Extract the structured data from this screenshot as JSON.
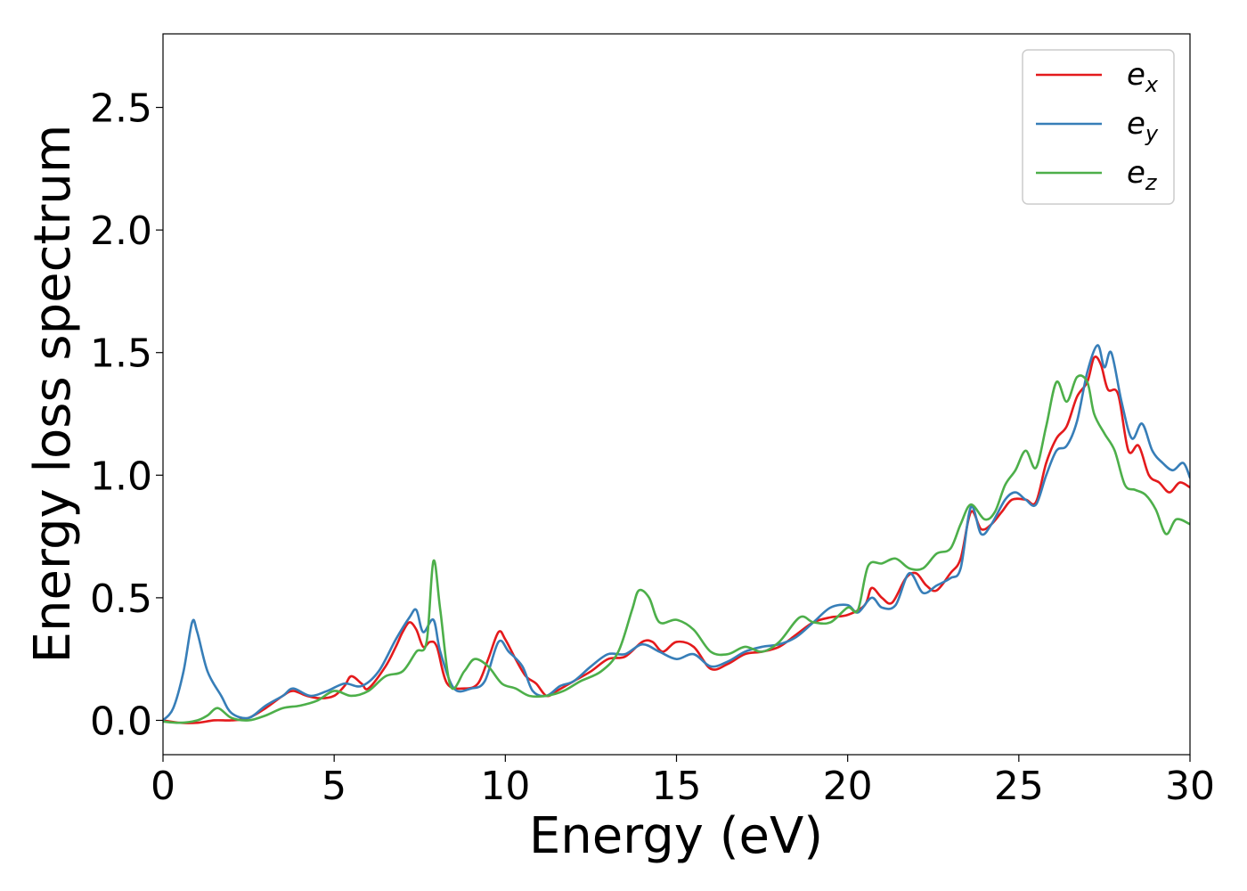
{
  "chart_data": {
    "type": "line",
    "xlabel": "Energy (eV)",
    "ylabel": "Energy loss spectrum",
    "xlim": [
      0,
      30
    ],
    "ylim": [
      -0.14,
      2.8
    ],
    "x_ticks": [
      "0",
      "5",
      "10",
      "15",
      "20",
      "25",
      "30"
    ],
    "y_ticks": [
      "0.0",
      "0.5",
      "1.0",
      "1.5",
      "2.0",
      "2.5"
    ],
    "grid": false,
    "legend_position": "top-right",
    "series": [
      {
        "name": "e_x",
        "label_base": "e",
        "label_sub": "x",
        "color": "#e41a1c",
        "points": [
          [
            0,
            0
          ],
          [
            0.5,
            -0.01
          ],
          [
            1,
            -0.01
          ],
          [
            1.5,
            0
          ],
          [
            2,
            0
          ],
          [
            2.5,
            0.01
          ],
          [
            3,
            0.05
          ],
          [
            3.5,
            0.1
          ],
          [
            3.8,
            0.12
          ],
          [
            4.2,
            0.1
          ],
          [
            4.6,
            0.09
          ],
          [
            5,
            0.1
          ],
          [
            5.3,
            0.14
          ],
          [
            5.5,
            0.18
          ],
          [
            5.8,
            0.15
          ],
          [
            6,
            0.13
          ],
          [
            6.5,
            0.22
          ],
          [
            6.8,
            0.3
          ],
          [
            7.0,
            0.36
          ],
          [
            7.2,
            0.4
          ],
          [
            7.4,
            0.37
          ],
          [
            7.6,
            0.3
          ],
          [
            7.8,
            0.32
          ],
          [
            8.0,
            0.3
          ],
          [
            8.3,
            0.15
          ],
          [
            8.8,
            0.13
          ],
          [
            9.2,
            0.15
          ],
          [
            9.5,
            0.25
          ],
          [
            9.8,
            0.36
          ],
          [
            10.0,
            0.33
          ],
          [
            10.3,
            0.25
          ],
          [
            10.6,
            0.18
          ],
          [
            10.9,
            0.15
          ],
          [
            11.2,
            0.1
          ],
          [
            11.5,
            0.12
          ],
          [
            12,
            0.16
          ],
          [
            12.5,
            0.2
          ],
          [
            13,
            0.25
          ],
          [
            13.5,
            0.26
          ],
          [
            14,
            0.32
          ],
          [
            14.3,
            0.32
          ],
          [
            14.6,
            0.28
          ],
          [
            15,
            0.32
          ],
          [
            15.5,
            0.3
          ],
          [
            16,
            0.21
          ],
          [
            16.5,
            0.23
          ],
          [
            17,
            0.27
          ],
          [
            17.5,
            0.28
          ],
          [
            18,
            0.3
          ],
          [
            18.5,
            0.35
          ],
          [
            19,
            0.4
          ],
          [
            19.5,
            0.42
          ],
          [
            20,
            0.43
          ],
          [
            20.5,
            0.47
          ],
          [
            20.7,
            0.54
          ],
          [
            21,
            0.5
          ],
          [
            21.3,
            0.48
          ],
          [
            21.7,
            0.58
          ],
          [
            22,
            0.6
          ],
          [
            22.3,
            0.55
          ],
          [
            22.6,
            0.53
          ],
          [
            23,
            0.6
          ],
          [
            23.3,
            0.66
          ],
          [
            23.6,
            0.85
          ],
          [
            23.9,
            0.78
          ],
          [
            24.2,
            0.8
          ],
          [
            24.5,
            0.85
          ],
          [
            24.8,
            0.9
          ],
          [
            25.2,
            0.9
          ],
          [
            25.5,
            0.89
          ],
          [
            25.8,
            1.05
          ],
          [
            26.1,
            1.15
          ],
          [
            26.4,
            1.2
          ],
          [
            26.7,
            1.32
          ],
          [
            27,
            1.38
          ],
          [
            27.2,
            1.48
          ],
          [
            27.4,
            1.45
          ],
          [
            27.6,
            1.35
          ],
          [
            27.9,
            1.33
          ],
          [
            28.2,
            1.1
          ],
          [
            28.5,
            1.12
          ],
          [
            28.8,
            1.0
          ],
          [
            29.1,
            0.97
          ],
          [
            29.4,
            0.93
          ],
          [
            29.7,
            0.97
          ],
          [
            30,
            0.95
          ]
        ]
      },
      {
        "name": "e_y",
        "label_base": "e",
        "label_sub": "y",
        "color": "#377eb8",
        "points": [
          [
            0,
            0
          ],
          [
            0.3,
            0.05
          ],
          [
            0.6,
            0.2
          ],
          [
            0.85,
            0.4
          ],
          [
            1.0,
            0.36
          ],
          [
            1.3,
            0.2
          ],
          [
            1.7,
            0.1
          ],
          [
            2.0,
            0.03
          ],
          [
            2.5,
            0.01
          ],
          [
            3,
            0.06
          ],
          [
            3.5,
            0.1
          ],
          [
            3.8,
            0.13
          ],
          [
            4.3,
            0.1
          ],
          [
            4.8,
            0.12
          ],
          [
            5.3,
            0.15
          ],
          [
            5.8,
            0.14
          ],
          [
            6.3,
            0.2
          ],
          [
            6.8,
            0.33
          ],
          [
            7.2,
            0.42
          ],
          [
            7.4,
            0.45
          ],
          [
            7.6,
            0.36
          ],
          [
            7.9,
            0.41
          ],
          [
            8.1,
            0.28
          ],
          [
            8.5,
            0.13
          ],
          [
            9.0,
            0.13
          ],
          [
            9.4,
            0.16
          ],
          [
            9.8,
            0.32
          ],
          [
            10.1,
            0.28
          ],
          [
            10.5,
            0.22
          ],
          [
            10.8,
            0.12
          ],
          [
            11.2,
            0.1
          ],
          [
            11.6,
            0.14
          ],
          [
            12,
            0.16
          ],
          [
            12.5,
            0.22
          ],
          [
            13,
            0.27
          ],
          [
            13.5,
            0.27
          ],
          [
            14,
            0.31
          ],
          [
            14.5,
            0.28
          ],
          [
            15,
            0.25
          ],
          [
            15.5,
            0.27
          ],
          [
            16,
            0.22
          ],
          [
            16.5,
            0.24
          ],
          [
            17,
            0.28
          ],
          [
            17.5,
            0.3
          ],
          [
            18,
            0.31
          ],
          [
            18.5,
            0.34
          ],
          [
            19,
            0.4
          ],
          [
            19.5,
            0.46
          ],
          [
            20,
            0.47
          ],
          [
            20.3,
            0.44
          ],
          [
            20.7,
            0.5
          ],
          [
            21,
            0.46
          ],
          [
            21.4,
            0.47
          ],
          [
            21.8,
            0.6
          ],
          [
            22.2,
            0.52
          ],
          [
            22.6,
            0.55
          ],
          [
            23,
            0.58
          ],
          [
            23.3,
            0.62
          ],
          [
            23.6,
            0.87
          ],
          [
            23.9,
            0.76
          ],
          [
            24.2,
            0.8
          ],
          [
            24.6,
            0.9
          ],
          [
            24.9,
            0.93
          ],
          [
            25.2,
            0.9
          ],
          [
            25.5,
            0.88
          ],
          [
            25.8,
            1.0
          ],
          [
            26.1,
            1.1
          ],
          [
            26.4,
            1.12
          ],
          [
            26.7,
            1.22
          ],
          [
            27,
            1.42
          ],
          [
            27.3,
            1.53
          ],
          [
            27.5,
            1.44
          ],
          [
            27.7,
            1.5
          ],
          [
            28,
            1.3
          ],
          [
            28.3,
            1.15
          ],
          [
            28.6,
            1.21
          ],
          [
            28.9,
            1.1
          ],
          [
            29.2,
            1.05
          ],
          [
            29.5,
            1.02
          ],
          [
            29.8,
            1.05
          ],
          [
            30,
            0.99
          ]
        ]
      },
      {
        "name": "e_z",
        "label_base": "e",
        "label_sub": "z",
        "color": "#4daf4a",
        "points": [
          [
            0,
            -0.005
          ],
          [
            0.5,
            -0.01
          ],
          [
            1,
            0
          ],
          [
            1.3,
            0.02
          ],
          [
            1.6,
            0.05
          ],
          [
            2,
            0.01
          ],
          [
            2.5,
            0
          ],
          [
            3,
            0.02
          ],
          [
            3.5,
            0.05
          ],
          [
            4,
            0.06
          ],
          [
            4.5,
            0.08
          ],
          [
            5,
            0.12
          ],
          [
            5.5,
            0.1
          ],
          [
            6,
            0.12
          ],
          [
            6.5,
            0.18
          ],
          [
            7,
            0.2
          ],
          [
            7.4,
            0.28
          ],
          [
            7.7,
            0.32
          ],
          [
            7.9,
            0.65
          ],
          [
            8.1,
            0.45
          ],
          [
            8.4,
            0.14
          ],
          [
            8.8,
            0.2
          ],
          [
            9.1,
            0.25
          ],
          [
            9.5,
            0.22
          ],
          [
            9.9,
            0.15
          ],
          [
            10.3,
            0.13
          ],
          [
            10.7,
            0.1
          ],
          [
            11.2,
            0.1
          ],
          [
            11.7,
            0.12
          ],
          [
            12.2,
            0.16
          ],
          [
            12.8,
            0.2
          ],
          [
            13.3,
            0.28
          ],
          [
            13.7,
            0.45
          ],
          [
            13.9,
            0.53
          ],
          [
            14.2,
            0.5
          ],
          [
            14.5,
            0.4
          ],
          [
            15,
            0.41
          ],
          [
            15.5,
            0.37
          ],
          [
            16,
            0.28
          ],
          [
            16.5,
            0.27
          ],
          [
            17,
            0.3
          ],
          [
            17.5,
            0.28
          ],
          [
            18,
            0.32
          ],
          [
            18.6,
            0.42
          ],
          [
            19,
            0.4
          ],
          [
            19.5,
            0.4
          ],
          [
            20,
            0.46
          ],
          [
            20.3,
            0.45
          ],
          [
            20.6,
            0.63
          ],
          [
            21,
            0.64
          ],
          [
            21.4,
            0.66
          ],
          [
            21.8,
            0.62
          ],
          [
            22.2,
            0.62
          ],
          [
            22.6,
            0.68
          ],
          [
            23,
            0.7
          ],
          [
            23.3,
            0.8
          ],
          [
            23.6,
            0.88
          ],
          [
            24,
            0.82
          ],
          [
            24.3,
            0.85
          ],
          [
            24.6,
            0.96
          ],
          [
            24.9,
            1.02
          ],
          [
            25.2,
            1.1
          ],
          [
            25.5,
            1.03
          ],
          [
            25.8,
            1.2
          ],
          [
            26.1,
            1.38
          ],
          [
            26.4,
            1.3
          ],
          [
            26.7,
            1.4
          ],
          [
            27,
            1.38
          ],
          [
            27.2,
            1.25
          ],
          [
            27.5,
            1.17
          ],
          [
            27.8,
            1.1
          ],
          [
            28.1,
            0.96
          ],
          [
            28.4,
            0.94
          ],
          [
            28.7,
            0.92
          ],
          [
            29,
            0.86
          ],
          [
            29.3,
            0.76
          ],
          [
            29.6,
            0.82
          ],
          [
            30,
            0.8
          ]
        ]
      }
    ]
  }
}
